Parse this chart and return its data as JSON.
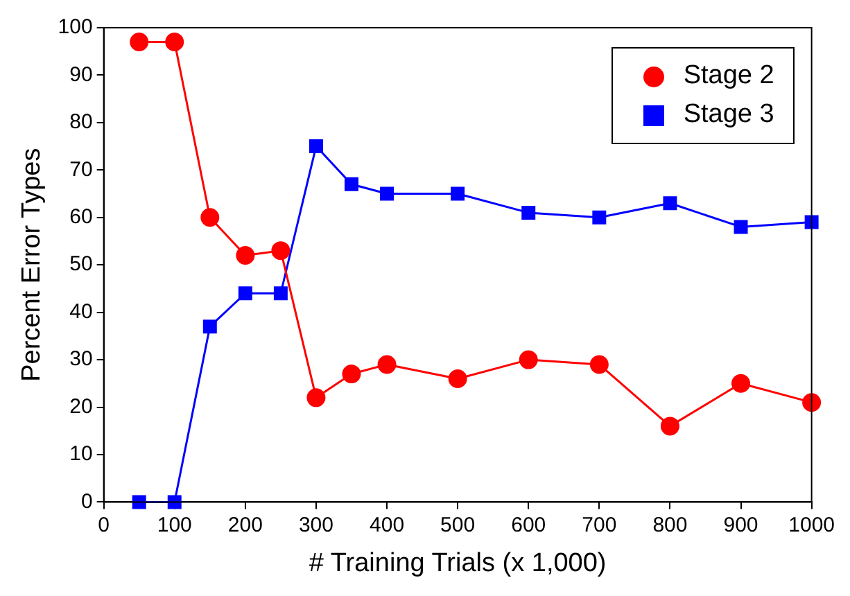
{
  "chart_data": {
    "type": "line",
    "xlabel": "# Training Trials (x 1,000)",
    "ylabel": "Percent Error Types",
    "x": [
      50,
      100,
      150,
      200,
      250,
      300,
      350,
      400,
      500,
      600,
      700,
      800,
      900,
      1000
    ],
    "series": [
      {
        "name": "Stage 2",
        "color": "#ff0000",
        "marker": "circle",
        "values": [
          97,
          97,
          60,
          52,
          53,
          22,
          27,
          29,
          26,
          30,
          29,
          16,
          25,
          21
        ]
      },
      {
        "name": "Stage 3",
        "color": "#0000ff",
        "marker": "square",
        "values": [
          0,
          0,
          37,
          44,
          44,
          75,
          67,
          65,
          65,
          61,
          60,
          63,
          58,
          59
        ]
      }
    ],
    "xlim": [
      0,
      1000
    ],
    "xticks": [
      0,
      100,
      200,
      300,
      400,
      500,
      600,
      700,
      800,
      900,
      1000
    ],
    "ylim": [
      0,
      100
    ],
    "yticks": [
      0,
      10,
      20,
      30,
      40,
      50,
      60,
      70,
      80,
      90,
      100
    ],
    "grid": false,
    "legend": "top right",
    "line_style": "solid"
  }
}
